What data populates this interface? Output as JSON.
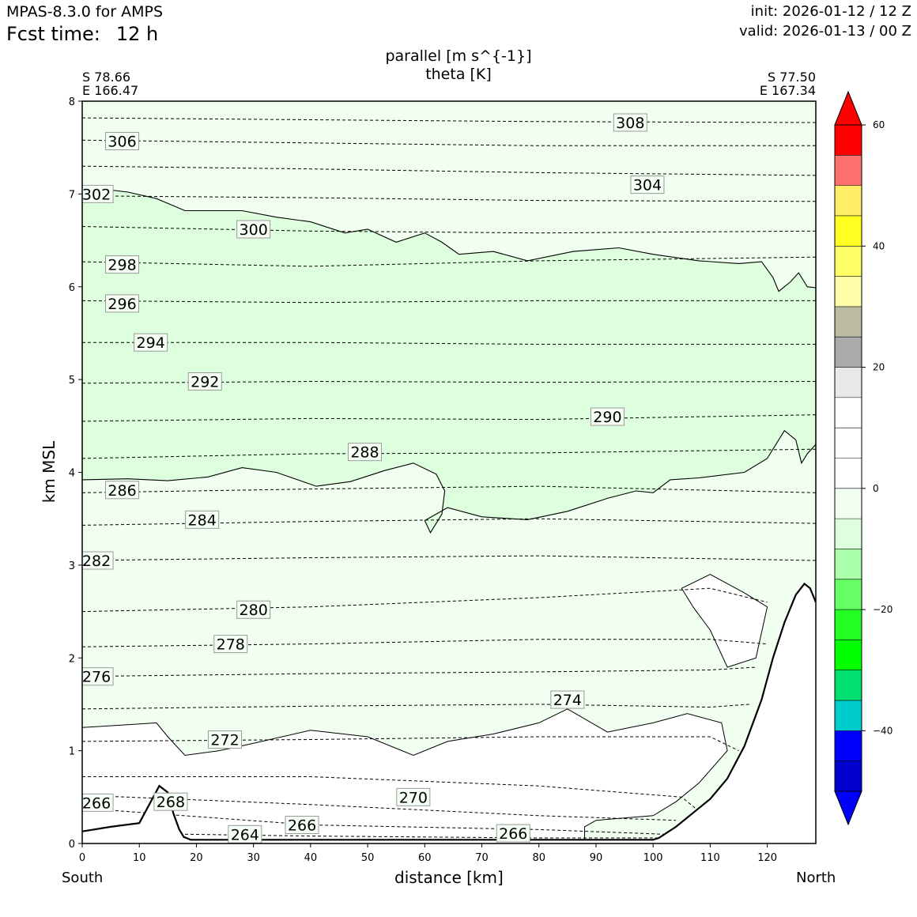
{
  "header": {
    "model": "MPAS-8.3.0 for AMPS",
    "fcst_label": "Fcst time:",
    "fcst_value": "12 h",
    "init": "init: 2026-01-12 / 12 Z",
    "valid": "valid: 2026-01-13 / 00 Z"
  },
  "chart_data": {
    "type": "contour-cross-section",
    "title_lines": [
      "parallel [m s^{-1}]",
      "theta [K]"
    ],
    "xlabel": "distance [km]",
    "ylabel": "km MSL",
    "left_end": {
      "name": "South",
      "lat": "S 78.66",
      "lon": "E 166.47"
    },
    "right_end": {
      "name": "North",
      "lat": "S 77.50",
      "lon": "E 167.34"
    },
    "xlim": [
      0,
      128.5
    ],
    "ylim": [
      0,
      8
    ],
    "xticks": [
      0,
      10,
      20,
      30,
      40,
      50,
      60,
      70,
      80,
      90,
      100,
      110,
      120
    ],
    "yticks": [
      0,
      1,
      2,
      3,
      4,
      5,
      6,
      7,
      8
    ],
    "terrain": [
      [
        0,
        0.13
      ],
      [
        5,
        0.18
      ],
      [
        10,
        0.22
      ],
      [
        12,
        0.45
      ],
      [
        13.5,
        0.62
      ],
      [
        15,
        0.55
      ],
      [
        16,
        0.32
      ],
      [
        17,
        0.15
      ],
      [
        17.8,
        0.07
      ],
      [
        19,
        0.04
      ],
      [
        30,
        0.04
      ],
      [
        60,
        0.04
      ],
      [
        100,
        0.04
      ],
      [
        101,
        0.06
      ],
      [
        104,
        0.18
      ],
      [
        107,
        0.33
      ],
      [
        110,
        0.48
      ],
      [
        113,
        0.7
      ],
      [
        116,
        1.05
      ],
      [
        119,
        1.55
      ],
      [
        121,
        2.0
      ],
      [
        123,
        2.38
      ],
      [
        125,
        2.68
      ],
      [
        126.5,
        2.8
      ],
      [
        127.5,
        2.75
      ],
      [
        128.5,
        2.6
      ]
    ],
    "colorbar": {
      "levels": [
        -50,
        -45,
        -40,
        -35,
        -30,
        -25,
        -20,
        -15,
        -10,
        -5,
        0,
        5,
        10,
        15,
        20,
        25,
        30,
        35,
        40,
        45,
        50,
        55,
        60
      ],
      "colors": [
        "#0000cd",
        "#0000ff",
        "#00cccc",
        "#00e070",
        "#00ff00",
        "#22ff22",
        "#66ff66",
        "#aaffaa",
        "#ddffdd",
        "#f0fff0",
        "#ffffff",
        "#ffffff",
        "#ffffff",
        "#e8e8e8",
        "#aaaaaa",
        "#bbbba2",
        "#ffffaa",
        "#ffff66",
        "#ffff22",
        "#ffee66",
        "#ff7070",
        "#ff0000"
      ],
      "under_color": "#0000ff",
      "over_color": "#ff0000",
      "tick_values": [
        -40,
        -20,
        0,
        20,
        40,
        60
      ],
      "tick_labels": [
        "−40",
        "−20",
        "0",
        "20",
        "40",
        "60"
      ]
    },
    "wind_regions": [
      {
        "level": -10,
        "color": "#ddffdd",
        "boundary": [
          [
            0,
            3.92
          ],
          [
            8,
            3.93
          ],
          [
            15,
            3.91
          ],
          [
            22,
            3.95
          ],
          [
            28,
            4.05
          ],
          [
            34,
            4.0
          ],
          [
            41,
            3.85
          ],
          [
            47,
            3.9
          ],
          [
            53,
            4.02
          ],
          [
            58,
            4.1
          ],
          [
            62,
            3.98
          ],
          [
            63.5,
            3.8
          ],
          [
            63,
            3.55
          ],
          [
            61,
            3.35
          ],
          [
            60,
            3.48
          ],
          [
            64,
            3.62
          ],
          [
            70,
            3.52
          ],
          [
            78,
            3.49
          ],
          [
            85,
            3.58
          ],
          [
            92,
            3.72
          ],
          [
            97,
            3.8
          ],
          [
            100,
            3.78
          ],
          [
            103,
            3.92
          ],
          [
            108,
            3.94
          ],
          [
            116,
            4.0
          ],
          [
            120,
            4.15
          ],
          [
            123,
            4.45
          ],
          [
            125,
            4.35
          ],
          [
            126,
            4.1
          ],
          [
            127,
            4.2
          ],
          [
            128.5,
            4.3
          ],
          [
            128.5,
            5.99
          ],
          [
            127,
            6.0
          ],
          [
            125.5,
            6.15
          ],
          [
            124,
            6.05
          ],
          [
            122,
            5.95
          ],
          [
            121,
            6.1
          ],
          [
            119,
            6.27
          ],
          [
            115,
            6.25
          ],
          [
            108,
            6.28
          ],
          [
            100,
            6.35
          ],
          [
            94,
            6.42
          ],
          [
            86,
            6.38
          ],
          [
            78,
            6.28
          ],
          [
            72,
            6.38
          ],
          [
            66,
            6.35
          ],
          [
            63,
            6.48
          ],
          [
            60,
            6.58
          ],
          [
            55,
            6.48
          ],
          [
            50,
            6.62
          ],
          [
            46,
            6.58
          ],
          [
            40,
            6.7
          ],
          [
            34,
            6.75
          ],
          [
            28,
            6.82
          ],
          [
            18,
            6.82
          ],
          [
            13,
            6.95
          ],
          [
            8,
            7.02
          ],
          [
            0,
            7.08
          ]
        ]
      },
      {
        "level": -5,
        "color": "#f0fff0",
        "note": "background tint above terrain-layer boundary"
      }
    ],
    "theta_levels": [
      264,
      266,
      268,
      270,
      272,
      274,
      276,
      278,
      280,
      282,
      284,
      286,
      288,
      290,
      292,
      294,
      296,
      298,
      300,
      302,
      304,
      306,
      308
    ],
    "theta_isentropes": [
      {
        "value": 308,
        "points": [
          [
            0,
            7.82
          ],
          [
            40,
            7.8
          ],
          [
            80,
            7.78
          ],
          [
            128.5,
            7.77
          ]
        ]
      },
      {
        "value": 306,
        "points": [
          [
            0,
            7.58
          ],
          [
            40,
            7.55
          ],
          [
            80,
            7.52
          ],
          [
            128.5,
            7.52
          ]
        ]
      },
      {
        "value": 304,
        "points": [
          [
            0,
            7.3
          ],
          [
            40,
            7.27
          ],
          [
            80,
            7.23
          ],
          [
            128.5,
            7.2
          ]
        ]
      },
      {
        "value": 302,
        "points": [
          [
            0,
            6.98
          ],
          [
            40,
            6.96
          ],
          [
            80,
            6.93
          ],
          [
            128.5,
            6.92
          ]
        ]
      },
      {
        "value": 300,
        "points": [
          [
            0,
            6.65
          ],
          [
            40,
            6.6
          ],
          [
            80,
            6.58
          ],
          [
            128.5,
            6.6
          ]
        ]
      },
      {
        "value": 298,
        "points": [
          [
            0,
            6.27
          ],
          [
            40,
            6.22
          ],
          [
            80,
            6.28
          ],
          [
            128.5,
            6.32
          ]
        ]
      },
      {
        "value": 296,
        "points": [
          [
            0,
            5.85
          ],
          [
            40,
            5.83
          ],
          [
            80,
            5.85
          ],
          [
            128.5,
            5.85
          ]
        ]
      },
      {
        "value": 294,
        "points": [
          [
            0,
            5.4
          ],
          [
            40,
            5.4
          ],
          [
            80,
            5.38
          ],
          [
            128.5,
            5.38
          ]
        ]
      },
      {
        "value": 292,
        "points": [
          [
            0,
            4.96
          ],
          [
            40,
            4.98
          ],
          [
            80,
            4.97
          ],
          [
            128.5,
            4.98
          ]
        ]
      },
      {
        "value": 290,
        "points": [
          [
            0,
            4.55
          ],
          [
            40,
            4.58
          ],
          [
            80,
            4.57
          ],
          [
            128.5,
            4.62
          ]
        ]
      },
      {
        "value": 288,
        "points": [
          [
            0,
            4.15
          ],
          [
            40,
            4.2
          ],
          [
            80,
            4.21
          ],
          [
            128.5,
            4.25
          ]
        ]
      },
      {
        "value": 286,
        "points": [
          [
            0,
            3.78
          ],
          [
            40,
            3.82
          ],
          [
            80,
            3.85
          ],
          [
            128.5,
            3.78
          ]
        ]
      },
      {
        "value": 284,
        "points": [
          [
            0,
            3.43
          ],
          [
            40,
            3.47
          ],
          [
            80,
            3.5
          ],
          [
            128.5,
            3.45
          ]
        ]
      },
      {
        "value": 282,
        "points": [
          [
            0,
            3.05
          ],
          [
            40,
            3.08
          ],
          [
            80,
            3.1
          ],
          [
            128.5,
            3.05
          ]
        ]
      },
      {
        "value": 280,
        "points": [
          [
            0,
            2.5
          ],
          [
            40,
            2.55
          ],
          [
            80,
            2.65
          ],
          [
            110,
            2.75
          ],
          [
            120,
            2.6
          ]
        ]
      },
      {
        "value": 278,
        "points": [
          [
            0,
            2.12
          ],
          [
            40,
            2.15
          ],
          [
            80,
            2.2
          ],
          [
            110,
            2.2
          ],
          [
            120,
            2.15
          ]
        ]
      },
      {
        "value": 276,
        "points": [
          [
            0,
            1.8
          ],
          [
            40,
            1.83
          ],
          [
            80,
            1.85
          ],
          [
            110,
            1.87
          ],
          [
            118,
            1.9
          ]
        ]
      },
      {
        "value": 274,
        "points": [
          [
            0,
            1.45
          ],
          [
            40,
            1.48
          ],
          [
            80,
            1.5
          ],
          [
            110,
            1.47
          ],
          [
            117,
            1.5
          ]
        ]
      },
      {
        "value": 272,
        "points": [
          [
            0,
            1.1
          ],
          [
            40,
            1.12
          ],
          [
            80,
            1.15
          ],
          [
            110,
            1.15
          ],
          [
            115,
            1.0
          ]
        ]
      },
      {
        "value": 270,
        "points": [
          [
            0,
            0.72
          ],
          [
            40,
            0.72
          ],
          [
            80,
            0.62
          ],
          [
            105,
            0.5
          ],
          [
            108,
            0.35
          ]
        ]
      },
      {
        "value": 268,
        "points": [
          [
            0,
            0.52
          ],
          [
            40,
            0.42
          ],
          [
            80,
            0.3
          ],
          [
            104,
            0.25
          ]
        ]
      },
      {
        "value": 266,
        "points": [
          [
            0,
            0.38
          ],
          [
            40,
            0.2
          ],
          [
            80,
            0.15
          ],
          [
            102,
            0.1
          ]
        ]
      },
      {
        "value": 264,
        "points": [
          [
            18,
            0.1
          ],
          [
            40,
            0.08
          ],
          [
            80,
            0.06
          ],
          [
            101,
            0.06
          ]
        ]
      }
    ],
    "theta_labels": [
      {
        "text": "308",
        "x": 96,
        "y": 7.77
      },
      {
        "text": "306",
        "x": 7,
        "y": 7.57
      },
      {
        "text": "304",
        "x": 99,
        "y": 7.1
      },
      {
        "text": "302",
        "x": 2.5,
        "y": 7.0
      },
      {
        "text": "300",
        "x": 30,
        "y": 6.62
      },
      {
        "text": "298",
        "x": 7,
        "y": 6.24
      },
      {
        "text": "296",
        "x": 7,
        "y": 5.82
      },
      {
        "text": "294",
        "x": 12,
        "y": 5.4
      },
      {
        "text": "292",
        "x": 21.5,
        "y": 4.98
      },
      {
        "text": "290",
        "x": 92,
        "y": 4.6
      },
      {
        "text": "288",
        "x": 49.5,
        "y": 4.22
      },
      {
        "text": "286",
        "x": 7,
        "y": 3.81
      },
      {
        "text": "284",
        "x": 21,
        "y": 3.49
      },
      {
        "text": "282",
        "x": 2.5,
        "y": 3.05
      },
      {
        "text": "280",
        "x": 30,
        "y": 2.52
      },
      {
        "text": "278",
        "x": 26,
        "y": 2.15
      },
      {
        "text": "276",
        "x": 2.5,
        "y": 1.8
      },
      {
        "text": "274",
        "x": 85,
        "y": 1.55
      },
      {
        "text": "272",
        "x": 25,
        "y": 1.12
      },
      {
        "text": "270",
        "x": 58,
        "y": 0.5
      },
      {
        "text": "268",
        "x": 15.5,
        "y": 0.45
      },
      {
        "text": "266",
        "x": 2.5,
        "y": 0.44
      },
      {
        "text": "266",
        "x": 38.5,
        "y": 0.2
      },
      {
        "text": "264",
        "x": 28.5,
        "y": 0.1
      },
      {
        "text": "266",
        "x": 75.5,
        "y": 0.11
      }
    ]
  }
}
